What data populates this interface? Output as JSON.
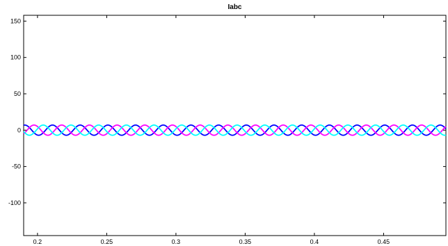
{
  "chart_data": {
    "type": "line",
    "title": "Iabc",
    "xlabel": "",
    "ylabel": "",
    "xlim": [
      0.19,
      0.495
    ],
    "ylim": [
      -145,
      158
    ],
    "xticks": [
      0.2,
      0.25,
      0.3,
      0.35,
      0.4,
      0.45
    ],
    "xtick_labels": [
      "0.2",
      "0.25",
      "0.3",
      "0.35",
      "0.4",
      "0.45"
    ],
    "yticks": [
      150,
      100,
      50,
      0,
      -50,
      -100
    ],
    "ytick_labels": [
      "150",
      "100",
      "50",
      "0",
      "-50",
      "-100"
    ],
    "grid": false,
    "series": [
      {
        "amplitude": 7,
        "frequency_hz": 50,
        "phase_deg": -105,
        "color": "#0000ff"
      },
      {
        "amplitude": 7,
        "frequency_hz": 50,
        "phase_deg": 135,
        "color": "#ff00ff"
      },
      {
        "amplitude": 7,
        "frequency_hz": 50,
        "phase_deg": 15,
        "color": "#00ffff"
      }
    ]
  }
}
